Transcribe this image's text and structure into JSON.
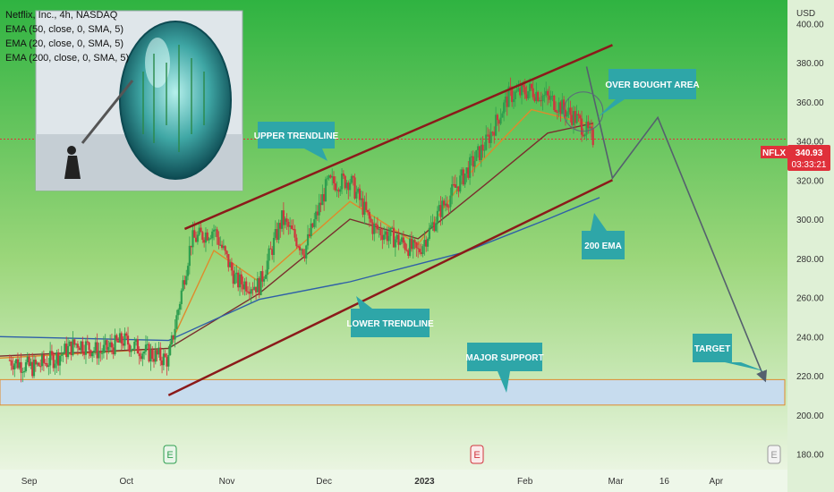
{
  "header": {
    "symbol_line": "Netflix, Inc., 4h, NASDAQ",
    "indicators": [
      "EMA (50, close, 0, SMA, 5)",
      "EMA (20, close, 0, SMA, 5)",
      "EMA (200, close, 0, SMA, 5)"
    ]
  },
  "price_tag": {
    "ticker": "NFLX",
    "price": "340.93",
    "countdown": "03:33:21"
  },
  "currency": "USD",
  "annotations": {
    "upper_trendline": "UPPER TRENDLINE",
    "lower_trendline": "LOWER TRENDLINE",
    "over_bought": "OVER BOUGHT AREA",
    "ema200": "200 EMA",
    "major_support": "MAJOR SUPPORT",
    "target": "TARGET"
  },
  "event_markers": [
    "E",
    "E",
    "E"
  ],
  "colors": {
    "background": "#b9e3a6",
    "up_candle": "#2e9e4f",
    "down_candle": "#d0343d",
    "ema20": "#e08a2b",
    "ema50": "#7a2e2e",
    "ema200": "#2f5fa8",
    "trendline": "#8b1a1a",
    "callout": "#2ea6a8",
    "support_fill": "#c7dcee",
    "support_border": "#e08a2b",
    "price_tag": "#e0303a"
  },
  "chart_data": {
    "type": "candlestick",
    "title": "Netflix, Inc., 4h, NASDAQ",
    "xlabel": "",
    "ylabel": "USD",
    "ylim": [
      172,
      412
    ],
    "grid": false,
    "y_ticks": [
      180,
      200,
      220,
      240,
      260,
      280,
      300,
      320,
      340,
      360,
      380,
      400
    ],
    "y_tick_labels": [
      "180.00",
      "200.00",
      "220.00",
      "240.00",
      "260.00",
      "280.00",
      "300.00",
      "320.00",
      "340.00",
      "360.00",
      "380.00",
      "400.00"
    ],
    "x_tick_labels": [
      "Sep",
      "Oct",
      "Nov",
      "Dec",
      "2023",
      "Feb",
      "Mar",
      "16",
      "Apr"
    ],
    "x_ticks_dates": [
      "2022-09-01",
      "2022-10-01",
      "2022-11-01",
      "2022-12-01",
      "2023-01-01",
      "2023-02-01",
      "2023-03-01",
      "2023-03-16",
      "2023-04-01"
    ],
    "x_range_dates": [
      "2022-08-23",
      "2023-04-23"
    ],
    "candles_closes_weekly": [
      {
        "date": "2022-08-26",
        "close": 228
      },
      {
        "date": "2022-09-02",
        "close": 224
      },
      {
        "date": "2022-09-09",
        "close": 229
      },
      {
        "date": "2022-09-16",
        "close": 237
      },
      {
        "date": "2022-09-23",
        "close": 232
      },
      {
        "date": "2022-09-30",
        "close": 238
      },
      {
        "date": "2022-10-07",
        "close": 232
      },
      {
        "date": "2022-10-14",
        "close": 228
      },
      {
        "date": "2022-10-21",
        "close": 289
      },
      {
        "date": "2022-10-28",
        "close": 295
      },
      {
        "date": "2022-11-04",
        "close": 268
      },
      {
        "date": "2022-11-11",
        "close": 266
      },
      {
        "date": "2022-11-18",
        "close": 300
      },
      {
        "date": "2022-11-25",
        "close": 284
      },
      {
        "date": "2022-12-02",
        "close": 318
      },
      {
        "date": "2022-12-09",
        "close": 320
      },
      {
        "date": "2022-12-16",
        "close": 296
      },
      {
        "date": "2022-12-23",
        "close": 290
      },
      {
        "date": "2022-12-30",
        "close": 283
      },
      {
        "date": "2023-01-06",
        "close": 305
      },
      {
        "date": "2023-01-13",
        "close": 322
      },
      {
        "date": "2023-01-20",
        "close": 339
      },
      {
        "date": "2023-01-27",
        "close": 363
      },
      {
        "date": "2023-02-03",
        "close": 366
      },
      {
        "date": "2023-02-10",
        "close": 360
      },
      {
        "date": "2023-02-17",
        "close": 351
      },
      {
        "date": "2023-02-22",
        "close": 341
      }
    ],
    "series": [
      {
        "name": "EMA (20, close, 0, SMA, 5)",
        "points": [
          {
            "date": "2022-08-23",
            "value": 229
          },
          {
            "date": "2022-10-14",
            "value": 234
          },
          {
            "date": "2022-10-28",
            "value": 284
          },
          {
            "date": "2022-11-11",
            "value": 268
          },
          {
            "date": "2022-12-09",
            "value": 309
          },
          {
            "date": "2022-12-30",
            "value": 287
          },
          {
            "date": "2023-01-13",
            "value": 320
          },
          {
            "date": "2023-02-03",
            "value": 356
          },
          {
            "date": "2023-02-22",
            "value": 348
          }
        ]
      },
      {
        "name": "EMA (50, close, 0, SMA, 5)",
        "points": [
          {
            "date": "2022-08-23",
            "value": 230
          },
          {
            "date": "2022-10-14",
            "value": 234
          },
          {
            "date": "2022-11-11",
            "value": 262
          },
          {
            "date": "2022-12-09",
            "value": 300
          },
          {
            "date": "2022-12-30",
            "value": 290
          },
          {
            "date": "2023-01-20",
            "value": 318
          },
          {
            "date": "2023-02-08",
            "value": 344
          },
          {
            "date": "2023-02-22",
            "value": 349
          }
        ]
      },
      {
        "name": "EMA (200, close, 0, SMA, 5)",
        "points": [
          {
            "date": "2022-08-23",
            "value": 240
          },
          {
            "date": "2022-10-14",
            "value": 238
          },
          {
            "date": "2022-11-11",
            "value": 259
          },
          {
            "date": "2022-12-09",
            "value": 268
          },
          {
            "date": "2023-01-13",
            "value": 283
          },
          {
            "date": "2023-02-08",
            "value": 300
          },
          {
            "date": "2023-02-24",
            "value": 311
          }
        ]
      }
    ],
    "drawings": {
      "upper_trendline": [
        {
          "date": "2022-10-19",
          "value": 295
        },
        {
          "date": "2023-02-28",
          "value": 389
        }
      ],
      "lower_trendline": [
        {
          "date": "2022-10-14",
          "value": 210
        },
        {
          "date": "2023-02-28",
          "value": 320
        }
      ],
      "projection_path": [
        {
          "date": "2023-02-20",
          "value": 378
        },
        {
          "date": "2023-02-28",
          "value": 321
        },
        {
          "date": "2023-03-14",
          "value": 352
        },
        {
          "date": "2023-04-16",
          "value": 218
        }
      ],
      "major_support_zone": [
        205,
        218
      ],
      "over_bought_circle_center": {
        "date": "2023-02-19",
        "value": 355
      },
      "last_price": 340.93
    }
  }
}
